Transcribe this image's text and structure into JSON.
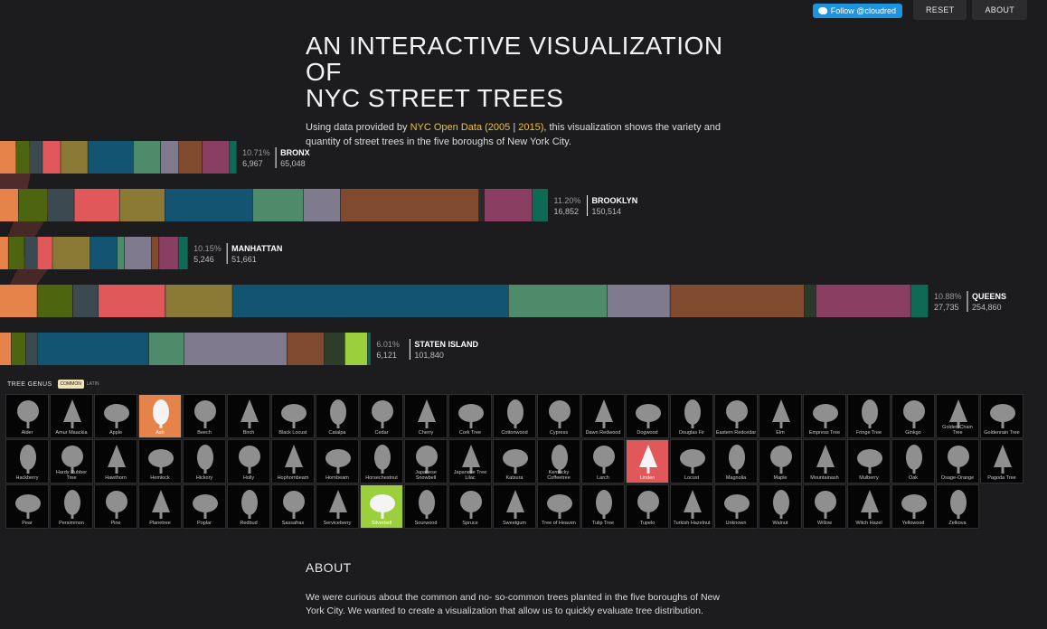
{
  "topbar": {
    "twitter": "Follow @cloudred",
    "reset": "RESET",
    "about": "ABOUT"
  },
  "header": {
    "title_line1": "AN INTERACTIVE VISUALIZATION OF",
    "title_line2": "NYC STREET TREES",
    "intro_pre": "Using data provided by ",
    "intro_link1": "NYC Open Data",
    "intro_link2": "(2005",
    "intro_sep": " | ",
    "intro_link3": "2015)",
    "intro_post": ", this visualization shows the variety and quantity of street trees in the five boroughs of New York City."
  },
  "colors": {
    "olive": "#8a7a35",
    "blue": "#145473",
    "green": "#4d8b6a",
    "lavender": "#7f7a8e",
    "brown": "#7f4a2e",
    "plum": "#8a3e62",
    "teal": "#0f6a55",
    "red": "#e0585a",
    "orange": "#e5834a",
    "darkgreen": "#4e6510",
    "lime": "#9ccf3c",
    "slate": "#3a4a50"
  },
  "chart_data": {
    "type": "bar",
    "title": "",
    "categories": [
      "BRONX",
      "BROOKLYN",
      "MANHATTAN",
      "QUEENS",
      "STATEN ISLAND"
    ],
    "series": [
      {
        "name": "",
        "values": [
          65048,
          150514,
          51661,
          254860,
          101840
        ]
      }
    ],
    "percent_labels": [
      "10.71%",
      "11.20%",
      "10.15%",
      "10.88%",
      "6.01%"
    ],
    "highlight_counts": [
      6967,
      16852,
      5246,
      27735,
      6121
    ],
    "count_labels": [
      "6,967",
      "16,852",
      "5,246",
      "27,735",
      "6,121"
    ],
    "total_labels": [
      "65,048",
      "150,514",
      "51,661",
      "254,860",
      "101,840"
    ],
    "segments": {
      "BRONX": [
        [
          "#e5834a",
          1800
        ],
        [
          "#4e6510",
          1500
        ],
        [
          "#3a4a50",
          1400
        ],
        [
          "#e0585a",
          2000
        ],
        [
          "#8a7a35",
          3000
        ],
        [
          "#145473",
          5000
        ],
        [
          "#4d8b6a",
          3000
        ],
        [
          "#7f7a8e",
          2000
        ],
        [
          "#7f4a2e",
          2600
        ],
        [
          "#8a3e62",
          3000
        ],
        [
          "#0f6a55",
          800
        ]
      ],
      "BROOKLYN": [
        [
          "#e5834a",
          3500
        ],
        [
          "#4e6510",
          5500
        ],
        [
          "#3a4a50",
          5000
        ],
        [
          "#e0585a",
          8500
        ],
        [
          "#8a7a35",
          8500
        ],
        [
          "#145473",
          16500
        ],
        [
          "#4d8b6a",
          9500
        ],
        [
          "#7f7a8e",
          7000
        ],
        [
          "#7f4a2e",
          26000
        ],
        [
          "#2a2a2a",
          1000
        ],
        [
          "#8a3e62",
          9000
        ],
        [
          "#0f6a55",
          3000
        ]
      ],
      "MANHATTAN": [
        [
          "#e5834a",
          800
        ],
        [
          "#4e6510",
          1500
        ],
        [
          "#3a4a50",
          1200
        ],
        [
          "#e0585a",
          1400
        ],
        [
          "#8a7a35",
          3500
        ],
        [
          "#145473",
          2500
        ],
        [
          "#4d8b6a",
          700
        ],
        [
          "#7f7a8e",
          2500
        ],
        [
          "#7f4a2e",
          700
        ],
        [
          "#8a3e62",
          1800
        ],
        [
          "#0f6a55",
          900
        ]
      ],
      "QUEENS": [
        [
          "#e5834a",
          9500
        ],
        [
          "#4e6510",
          9000
        ],
        [
          "#3a4a50",
          6500
        ],
        [
          "#e0585a",
          17000
        ],
        [
          "#8a7a35",
          17000
        ],
        [
          "#145473",
          70000
        ],
        [
          "#4d8b6a",
          25000
        ],
        [
          "#7f7a8e",
          16000
        ],
        [
          "#7f4a2e",
          34000
        ],
        [
          "#2a3a2a",
          3000
        ],
        [
          "#8a3e62",
          24000
        ],
        [
          "#0f6a55",
          4500
        ]
      ],
      "STATEN ISLAND": [
        [
          "#e5834a",
          2800
        ],
        [
          "#4e6510",
          3500
        ],
        [
          "#3a4a50",
          2800
        ],
        [
          "#145473",
          27000
        ],
        [
          "#4d8b6a",
          8500
        ],
        [
          "#7f7a8e",
          25000
        ],
        [
          "#7f4a2e",
          9000
        ],
        [
          "#2e3d2a",
          5000
        ],
        [
          "#9ccf3c",
          5500
        ],
        [
          "#0f6a55",
          800
        ]
      ]
    }
  },
  "genus": {
    "title": "TREE GENUS",
    "toggle_common": "COMMON",
    "toggle_latin": "LATIN",
    "items": [
      "Alder",
      "Amur Maackia",
      "Apple",
      "Ash",
      "Beech",
      "Birch",
      "Black Locust",
      "Catalpa",
      "Cedar",
      "Cherry",
      "Cork Tree",
      "Cottonwood",
      "Cypress",
      "Dawn Redwood",
      "Dogwood",
      "Douglas Fir",
      "Eastern Redcedar",
      "Elm",
      "Empress Tree",
      "Fringe Tree",
      "Ginkgo",
      "Golden Chain Tree",
      "Goldenrain Tree",
      "Hackberry",
      "Hardy Rubber Tree",
      "Hawthorn",
      "Hemlock",
      "Hickory",
      "Holly",
      "Hophornbeam",
      "Hornbeam",
      "Horsechestnut",
      "Japanese Snowbell",
      "Japanese Tree Lilac",
      "Katsura",
      "Kentucky Coffeetree",
      "Larch",
      "Linden",
      "Locust",
      "Magnolia",
      "Maple",
      "Mountainash",
      "Mulberry",
      "Oak",
      "Osage-Orange",
      "Pagoda Tree",
      "Pear",
      "Persimmon",
      "Pine",
      "Planetree",
      "Poplar",
      "Redbud",
      "Sassafras",
      "Serviceberry",
      "Silverbell",
      "Sourwood",
      "Spruce",
      "Sweetgum",
      "Tree of Heaven",
      "Tulip Tree",
      "Tupelo",
      "Turkish Hazelnut",
      "Unknown",
      "Walnut",
      "Willow",
      "Witch Hazel",
      "Yellowood",
      "Zelkova"
    ],
    "highlight": {
      "Ash": "hl-ash",
      "Linden": "hl-linden",
      "Silverbell": "hl-silverbell"
    }
  },
  "about": {
    "title": "ABOUT",
    "text": "We were curious about the common and no- so-common trees planted in the five boroughs of New York City. We wanted to create a visualization that allow us to quickly evaluate tree distribution."
  }
}
